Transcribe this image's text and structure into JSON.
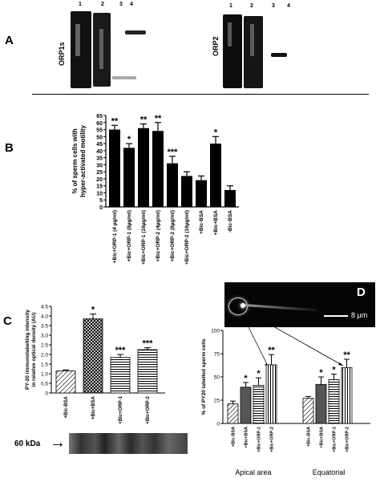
{
  "panels": {
    "a": "A",
    "b": "B",
    "c": "C",
    "d": "D"
  },
  "panel_a": {
    "blot1": {
      "name": "ORP1s",
      "lanes": [
        "1",
        "2",
        "3",
        "4"
      ]
    },
    "blot2": {
      "name": "ORP2",
      "lanes": [
        "1",
        "2",
        "3",
        "4"
      ]
    }
  },
  "panel_c": {
    "western_label": "60 kDa",
    "arrow": "→"
  },
  "panel_d": {
    "scalebar": "8 µm"
  },
  "colors": {
    "bar_fill": "#000000",
    "axis": "#000000",
    "micrograph_bg": "#050505"
  },
  "chart_data": [
    {
      "id": "B",
      "type": "bar",
      "ylabel": "% of sperm cells with hyper-activated motility",
      "ylim": [
        0,
        65
      ],
      "yticks": [
        0,
        5,
        10,
        15,
        20,
        25,
        30,
        35,
        40,
        45,
        50,
        55,
        60,
        65
      ],
      "categories": [
        "+Bic+ORP-1 (4 µg/ml)",
        "+Bic+ORP-1 (8µg/ml)",
        "+Bic+ORP-1 (16µg/ml)",
        "+Bic+ORP-2 (4µg/ml)",
        "+Bic+ORP-2 (8µg/ml)",
        "+Bic+ORP-2 (16µg/ml)",
        "+Bic-BSA",
        "+Bic+BSA",
        "-Bic-BSA"
      ],
      "values": [
        55,
        42,
        56,
        54,
        31,
        22,
        19,
        45,
        12
      ],
      "errors": [
        3,
        3,
        3,
        6,
        5,
        3,
        3,
        5,
        3
      ],
      "significance": [
        "**",
        "*",
        "**",
        "**",
        "***",
        "",
        "",
        "*",
        ""
      ]
    },
    {
      "id": "C",
      "type": "bar",
      "ylabel": "PY-20 immunolabelling intensity in relative optical density (AU)",
      "ylim": [
        0,
        4.5
      ],
      "yticks": [
        0,
        0.5,
        1.0,
        1.5,
        2.0,
        2.5,
        3.0,
        3.5,
        4.0,
        4.5
      ],
      "ytick_labels": [
        "0",
        "0.5",
        "1.0",
        "1.5",
        "2.0",
        "2.5",
        "3.0",
        "3.5",
        "4.0",
        "4.5"
      ],
      "categories": [
        "+Bic-BSA",
        "+Bic+BSA",
        "+Bic+ORP-1",
        "+Bic+ORP-2"
      ],
      "values": [
        1.15,
        3.85,
        1.85,
        2.25
      ],
      "errors": [
        0.05,
        0.25,
        0.15,
        0.1
      ],
      "significance": [
        "",
        "*",
        "***",
        "***"
      ],
      "patterns": [
        "diag",
        "cross",
        "hlines",
        "hlines"
      ]
    },
    {
      "id": "D",
      "type": "bar",
      "ylabel": "% of PY20 labelled sperm cells",
      "ylim": [
        0,
        100
      ],
      "yticks": [
        0,
        25,
        50,
        75,
        100
      ],
      "categories": [
        "+Bic-BSA",
        "+Bic+BSA",
        "+Bic+ORP-1",
        "+Bic+ORP-2"
      ],
      "groups": [
        "Apical area",
        "Equatorial"
      ],
      "series": [
        {
          "group": "Apical area",
          "values": [
            21,
            39,
            41,
            63
          ],
          "errors": [
            3,
            5,
            8,
            11
          ],
          "significance": [
            "",
            "*",
            "*",
            "**"
          ]
        },
        {
          "group": "Equatorial",
          "values": [
            27,
            42,
            47,
            60
          ],
          "errors": [
            2,
            8,
            6,
            9
          ],
          "significance": [
            "",
            "*",
            "*",
            "**"
          ]
        }
      ],
      "patterns": [
        "diag",
        "solid",
        "hlines",
        "vlines"
      ]
    }
  ]
}
